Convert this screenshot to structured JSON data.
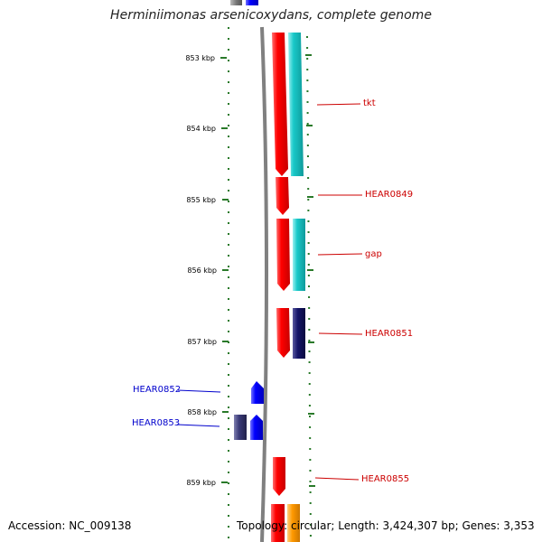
{
  "title": "Herminiimonas arsenicoxydans, complete genome",
  "accession_text": "Accession: NC_009138",
  "topology_text": "Topology: circular; Length: 3,424,307 bp; Genes: 3,353",
  "scale_labels": [
    "853 kbp",
    "854 kbp",
    "855 kbp",
    "856 kbp",
    "857 kbp",
    "858 kbp",
    "859 kbp"
  ],
  "genes": [
    {
      "label": "tkt",
      "strand": "forward",
      "color": "#cc0000"
    },
    {
      "label": "HEAR0849",
      "strand": "forward",
      "color": "#cc0000"
    },
    {
      "label": "gap",
      "strand": "forward",
      "color": "#cc0000"
    },
    {
      "label": "HEAR0851",
      "strand": "forward",
      "color": "#cc0000"
    },
    {
      "label": "HEAR0852",
      "strand": "reverse",
      "color": "#0000cc"
    },
    {
      "label": "HEAR0853",
      "strand": "reverse",
      "color": "#0000cc"
    },
    {
      "label": "HEAR0855",
      "strand": "forward",
      "color": "#cc0000"
    }
  ],
  "colors": {
    "forward_gene": "#ff0000",
    "reverse_gene": "#0000ff",
    "cog_teal": "#19c9c9",
    "cog_navy": "#141468",
    "cog_purple": "#3a3a78",
    "cog_orange": "#ff9900",
    "backbone": "#808080",
    "tick_green": "#2a7a2a"
  }
}
